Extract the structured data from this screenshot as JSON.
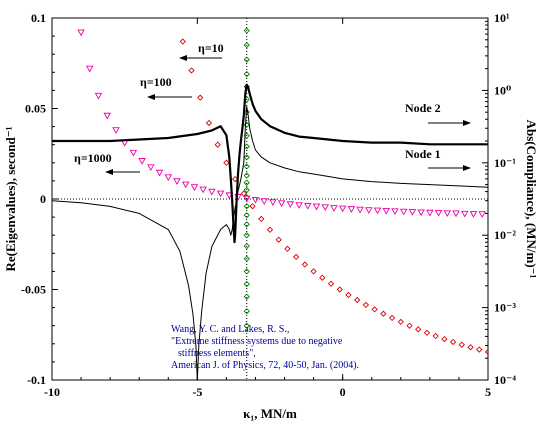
{
  "chart_data": {
    "type": "scatter",
    "xlabel": "κ₁, MN/m",
    "ylabel": "Re(Eigenvalues), second⁻¹",
    "y2label": "Abs(Compliance), (MN/m)⁻¹",
    "xlim": [
      -10,
      5
    ],
    "ylim": [
      -0.1,
      0.1
    ],
    "y2lim": [
      0.0001,
      10
    ],
    "y2scale": "log",
    "xticks": [
      "-10",
      "-5",
      "0",
      "5"
    ],
    "yticks": [
      "0.1",
      "0.05",
      "0",
      "-0.05",
      "-0.1"
    ],
    "y2ticks": [
      "10¹",
      "10⁰",
      "10⁻¹",
      "10⁻²",
      "10⁻³",
      "10⁻⁴"
    ],
    "grid": false,
    "reference_lines": {
      "vertical_x": -3.3,
      "horizontal_y": 0
    },
    "series": [
      {
        "name": "η=10",
        "marker": "diamond",
        "axis": "left",
        "color": "#008800",
        "x": [
          -3.3,
          -3.3,
          -3.3,
          -3.3,
          -3.3,
          -3.3,
          -3.3,
          -3.3,
          -3.3,
          -3.3,
          -3.3,
          -3.3,
          -3.3,
          -3.3,
          -3.3,
          -3.3,
          -3.3,
          -3.3,
          -3.3,
          -3.3,
          -3.3,
          -3.3,
          -3.3,
          -3.3,
          -3.3,
          -3.3,
          -3.3
        ],
        "y": [
          0.093,
          0.085,
          0.077,
          0.069,
          0.062,
          0.055,
          0.048,
          0.041,
          0.035,
          0.029,
          0.023,
          0.018,
          0.013,
          0.009,
          0.005,
          0.001,
          -0.004,
          -0.009,
          -0.014,
          -0.02,
          -0.026,
          -0.033,
          -0.04,
          -0.047,
          -0.054,
          -0.062,
          -0.07
        ]
      },
      {
        "name": "η=100",
        "marker": "diamond",
        "axis": "left",
        "color": "#dd0000",
        "x": [
          -5.5,
          -5.2,
          -4.9,
          -4.6,
          -4.3,
          -4.0,
          -3.7,
          -3.4,
          -3.1,
          -2.8,
          -2.5,
          -2.2,
          -1.9,
          -1.6,
          -1.3,
          -1.0,
          -0.7,
          -0.4,
          -0.1,
          0.2,
          0.5,
          0.8,
          1.1,
          1.4,
          1.7,
          2.0,
          2.3,
          2.6,
          2.9,
          3.2,
          3.5,
          3.8,
          4.1,
          4.4,
          4.7,
          5.0
        ],
        "y": [
          0.087,
          0.071,
          0.056,
          0.042,
          0.03,
          0.02,
          0.011,
          0.003,
          -0.004,
          -0.011,
          -0.017,
          -0.0225,
          -0.0275,
          -0.032,
          -0.0362,
          -0.04,
          -0.0435,
          -0.0468,
          -0.05,
          -0.053,
          -0.0558,
          -0.0585,
          -0.061,
          -0.0634,
          -0.0657,
          -0.0679,
          -0.07,
          -0.072,
          -0.0739,
          -0.0757,
          -0.0774,
          -0.079,
          -0.0805,
          -0.0819,
          -0.0832,
          -0.0845
        ]
      },
      {
        "name": "η=1000",
        "marker": "triangle-down",
        "axis": "left",
        "color": "#ee00aa",
        "x": [
          -9.0,
          -8.7,
          -8.4,
          -8.1,
          -7.8,
          -7.5,
          -7.2,
          -6.9,
          -6.6,
          -6.3,
          -6.0,
          -5.7,
          -5.4,
          -5.1,
          -4.8,
          -4.5,
          -4.2,
          -3.9,
          -3.6,
          -3.3,
          -3.0,
          -2.7,
          -2.4,
          -2.1,
          -1.8,
          -1.5,
          -1.2,
          -0.9,
          -0.6,
          -0.3,
          0.0,
          0.3,
          0.6,
          0.9,
          1.2,
          1.5,
          1.8,
          2.1,
          2.4,
          2.7,
          3.0,
          3.3,
          3.6,
          3.9,
          4.2,
          4.5,
          4.8
        ],
        "y": [
          0.092,
          0.072,
          0.057,
          0.046,
          0.038,
          0.031,
          0.0255,
          0.021,
          0.0175,
          0.0145,
          0.012,
          0.0098,
          0.008,
          0.0065,
          0.0052,
          0.004,
          0.003,
          0.002,
          0.0011,
          0.0002,
          -0.0005,
          -0.0012,
          -0.0018,
          -0.0024,
          -0.0029,
          -0.0034,
          -0.0038,
          -0.0042,
          -0.0046,
          -0.005,
          -0.0053,
          -0.0056,
          -0.0059,
          -0.0062,
          -0.0064,
          -0.0066,
          -0.0068,
          -0.007,
          -0.0072,
          -0.0074,
          -0.0076,
          -0.0077,
          -0.0079,
          -0.008,
          -0.0082,
          -0.0083,
          -0.0084
        ]
      },
      {
        "name": "Node 2",
        "marker": "line",
        "axis": "right",
        "color": "#000000",
        "lineWidth": 2.2,
        "x": [
          -10,
          -9,
          -8,
          -7,
          -6,
          -5,
          -4.5,
          -4.2,
          -4.0,
          -3.9,
          -3.85,
          -3.8,
          -3.75,
          -3.72,
          -3.7,
          -3.68,
          -3.65,
          -3.6,
          -3.55,
          -3.5,
          -3.45,
          -3.4,
          -3.35,
          -3.3,
          -3.25,
          -3.2,
          -3.1,
          -3.0,
          -2.8,
          -2.5,
          -2.0,
          -1.5,
          -1.0,
          0.0,
          1.0,
          2.0,
          3.0,
          4.0,
          5.0
        ],
        "y": [
          0.2,
          0.2,
          0.2,
          0.21,
          0.22,
          0.25,
          0.28,
          0.32,
          0.24,
          0.12,
          0.06,
          0.03,
          0.012,
          0.008,
          0.01,
          0.015,
          0.03,
          0.07,
          0.13,
          0.2,
          0.3,
          0.45,
          0.9,
          1.2,
          1.1,
          0.9,
          0.65,
          0.52,
          0.4,
          0.32,
          0.26,
          0.23,
          0.22,
          0.2,
          0.19,
          0.19,
          0.18,
          0.18,
          0.18
        ]
      },
      {
        "name": "Node 1",
        "marker": "line",
        "axis": "right",
        "color": "#000000",
        "lineWidth": 1,
        "x": [
          -10,
          -9,
          -8,
          -7,
          -6,
          -5.6,
          -5.3,
          -5.15,
          -5.05,
          -5.0,
          -4.95,
          -4.85,
          -4.7,
          -4.5,
          -4.2,
          -4.0,
          -3.9,
          -3.85,
          -3.8,
          -3.75,
          -3.7,
          -3.65,
          -3.6,
          -3.5,
          -3.4,
          -3.35,
          -3.3,
          -3.25,
          -3.2,
          -3.1,
          -3.0,
          -2.8,
          -2.5,
          -2.0,
          -1.5,
          -1.0,
          0.0,
          1.0,
          2.0,
          3.0,
          4.0,
          5.0
        ],
        "y": [
          0.03,
          0.028,
          0.025,
          0.02,
          0.012,
          0.006,
          0.002,
          0.0008,
          0.0003,
          0.0001,
          0.0003,
          0.0009,
          0.003,
          0.007,
          0.012,
          0.014,
          0.012,
          0.01,
          0.012,
          0.018,
          0.024,
          0.03,
          0.04,
          0.06,
          0.1,
          0.3,
          0.6,
          0.45,
          0.3,
          0.2,
          0.15,
          0.12,
          0.1,
          0.085,
          0.075,
          0.07,
          0.06,
          0.055,
          0.052,
          0.05,
          0.048,
          0.046
        ]
      }
    ],
    "annotations": [
      "η=10",
      "η=100",
      "η=1000",
      "Node 2",
      "Node 1"
    ],
    "citation": [
      "Wang, Y. C. and Lakes, R. S.,",
      "\"Extreme stiffness systems due to negative",
      "stiffness elements\",",
      "American J. of Physics, 72, 40-50, Jan. (2004)."
    ]
  }
}
